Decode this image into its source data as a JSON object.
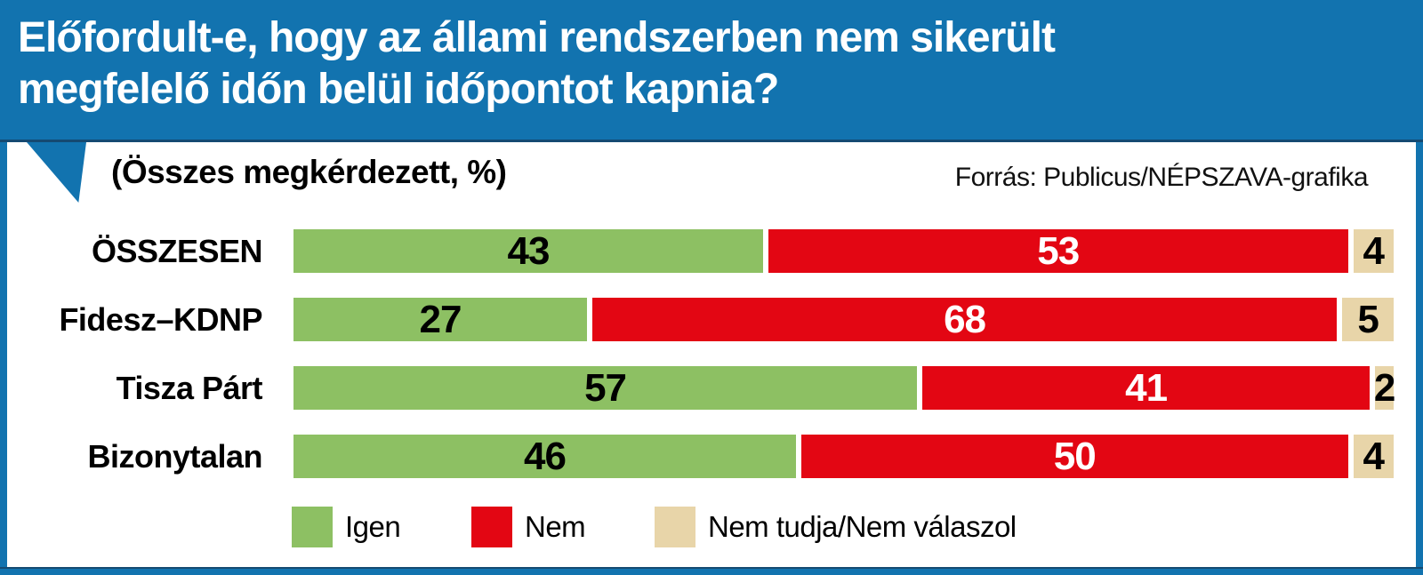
{
  "header": {
    "title_lines": [
      "Előfordult-e, hogy az állami rendszerben nem sikerült",
      "megfelelő időn belül időpontot kapnia?"
    ]
  },
  "panel": {
    "subtitle": "(Összes megkérdezett, %)",
    "source": "Forrás: Publicus/NÉPSZAVA-grafika"
  },
  "colors": {
    "brand_blue": "#1273AF",
    "edge_navy": "#154A72",
    "green": "#8DC063",
    "red": "#E30613",
    "tan": "#E8D5A9",
    "text_black": "#000000",
    "text_white": "#FFFFFF"
  },
  "legend": [
    {
      "label": "Igen",
      "color": "#8DC063"
    },
    {
      "label": "Nem",
      "color": "#E30613"
    },
    {
      "label": "Nem tudja/Nem válaszol",
      "color": "#E8D5A9"
    }
  ],
  "chart_data": {
    "type": "bar",
    "orientation": "horizontal",
    "stacked": true,
    "unit": "%",
    "xlim": [
      0,
      100
    ],
    "grid": false,
    "legend_position": "bottom",
    "title": "Előfordult-e, hogy az állami rendszerben nem sikerült megfelelő időn belül időpontot kapnia?",
    "subtitle": "(Összes megkérdezett, %)",
    "source": "Forrás: Publicus/NÉPSZAVA-grafika",
    "categories": [
      "ÖSSZESEN",
      "Fidesz–KDNP",
      "Tisza Párt",
      "Bizonytalan"
    ],
    "series": [
      {
        "name": "Igen",
        "color": "#8DC063",
        "text_color": "#000000",
        "values": [
          43,
          27,
          57,
          46
        ]
      },
      {
        "name": "Nem",
        "color": "#E30613",
        "text_color": "#FFFFFF",
        "values": [
          53,
          68,
          41,
          50
        ]
      },
      {
        "name": "Nem tudja/Nem válaszol",
        "color": "#E8D5A9",
        "text_color": "#000000",
        "values": [
          4,
          5,
          2,
          4
        ]
      }
    ]
  }
}
